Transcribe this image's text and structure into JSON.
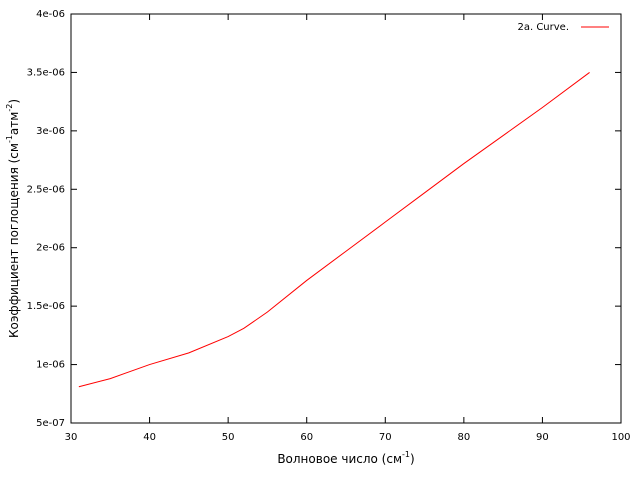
{
  "chart_data": {
    "type": "line",
    "xlabel_parts": [
      {
        "text": "Волновое число (см"
      },
      {
        "sup": "-1"
      },
      {
        "text": ")"
      }
    ],
    "ylabel_parts": [
      {
        "text": "Коэффициент поглощения (см"
      },
      {
        "sup": "-1"
      },
      {
        "text": "атм"
      },
      {
        "sup": "-2"
      },
      {
        "text": ")"
      }
    ],
    "x": [
      31,
      35,
      40,
      45,
      50,
      52,
      55,
      60,
      65,
      70,
      75,
      80,
      85,
      90,
      96
    ],
    "series": [
      {
        "name": "2a. Curve.",
        "color": "#ff0000",
        "values": [
          8.1e-07,
          8.8e-07,
          1e-06,
          1.1e-06,
          1.24e-06,
          1.31e-06,
          1.45e-06,
          1.72e-06,
          1.97e-06,
          2.22e-06,
          2.47e-06,
          2.72e-06,
          2.96e-06,
          3.2e-06,
          3.5e-06
        ]
      }
    ],
    "xlim": [
      30,
      100
    ],
    "xticks": [
      30,
      40,
      50,
      60,
      70,
      80,
      90,
      100
    ],
    "ylim": [
      5e-07,
      4e-06
    ],
    "yticks": [
      {
        "value": 5e-07,
        "label": "5e-07"
      },
      {
        "value": 1e-06,
        "label": "1e-06"
      },
      {
        "value": 1.5e-06,
        "label": "1.5e-06"
      },
      {
        "value": 2e-06,
        "label": "2e-06"
      },
      {
        "value": 2.5e-06,
        "label": "2.5e-06"
      },
      {
        "value": 3e-06,
        "label": "3e-06"
      },
      {
        "value": 3.5e-06,
        "label": "3.5e-06"
      },
      {
        "value": 4e-06,
        "label": "4e-06"
      }
    ],
    "legend": "top-right"
  }
}
